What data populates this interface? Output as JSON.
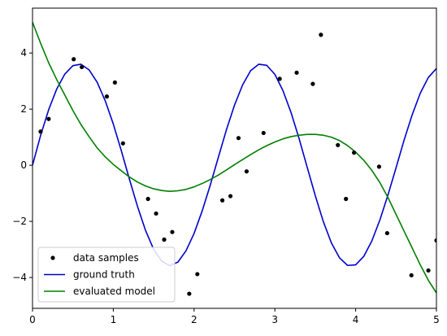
{
  "chart_data": {
    "type": "line",
    "title": "",
    "xlabel": "",
    "ylabel": "",
    "xlim": [
      0,
      5
    ],
    "ylim": [
      -5.1,
      5.6
    ],
    "xticks": [
      0,
      1,
      2,
      3,
      4,
      5
    ],
    "yticks": [
      -4,
      -2,
      0,
      2,
      4
    ],
    "grid": false,
    "legend_position": "bottom-left",
    "legend": [
      "data samples",
      "ground truth",
      "evaluated model"
    ],
    "series": [
      {
        "name": "data samples",
        "kind": "scatter",
        "color": "#000000",
        "x": [
          0.1,
          0.2,
          0.51,
          0.61,
          0.92,
          1.02,
          1.12,
          1.43,
          1.53,
          1.63,
          1.73,
          1.94,
          2.04,
          2.35,
          2.45,
          2.55,
          2.65,
          2.86,
          3.06,
          3.27,
          3.47,
          3.57,
          3.78,
          3.88,
          3.98,
          4.29,
          4.39,
          4.69,
          4.9,
          5.0
        ],
        "y": [
          1.2,
          1.65,
          3.78,
          3.5,
          2.45,
          2.95,
          0.78,
          -1.2,
          -1.72,
          -2.65,
          -2.38,
          -4.58,
          -3.88,
          -1.25,
          -1.1,
          0.97,
          -0.22,
          1.15,
          3.08,
          3.3,
          2.9,
          4.65,
          0.72,
          -1.2,
          0.45,
          -0.05,
          -2.42,
          -3.92,
          -3.75,
          -2.68
        ]
      },
      {
        "name": "ground truth",
        "kind": "line",
        "color": "#0000cc",
        "x": [
          0,
          0.1,
          0.2,
          0.3,
          0.4,
          0.5,
          0.6,
          0.7,
          0.8,
          0.9,
          1.0,
          1.1,
          1.2,
          1.3,
          1.4,
          1.5,
          1.6,
          1.7,
          1.8,
          1.9,
          2.0,
          2.1,
          2.2,
          2.3,
          2.4,
          2.5,
          2.6,
          2.7,
          2.8,
          2.9,
          3.0,
          3.1,
          3.2,
          3.3,
          3.4,
          3.5,
          3.6,
          3.7,
          3.8,
          3.9,
          4.0,
          4.1,
          4.2,
          4.3,
          4.4,
          4.5,
          4.6,
          4.7,
          4.8,
          4.9,
          5.0
        ],
        "y": [
          0.0,
          1.06,
          1.98,
          2.72,
          3.25,
          3.55,
          3.6,
          3.4,
          2.96,
          2.3,
          1.47,
          0.51,
          -0.5,
          -1.47,
          -2.33,
          -3.0,
          -3.42,
          -3.58,
          -3.45,
          -3.05,
          -2.43,
          -1.63,
          -0.71,
          0.28,
          1.26,
          2.14,
          2.86,
          3.37,
          3.6,
          3.56,
          3.24,
          2.66,
          1.88,
          0.95,
          -0.07,
          -1.08,
          -2.01,
          -2.77,
          -3.3,
          -3.57,
          -3.55,
          -3.25,
          -2.7,
          -1.95,
          -1.06,
          -0.09,
          0.9,
          1.8,
          2.57,
          3.13,
          3.45
        ]
      },
      {
        "name": "evaluated model",
        "kind": "line",
        "color": "#008000",
        "x": [
          0,
          0.1,
          0.2,
          0.3,
          0.4,
          0.5,
          0.6,
          0.7,
          0.8,
          0.9,
          1.0,
          1.1,
          1.2,
          1.3,
          1.4,
          1.5,
          1.6,
          1.7,
          1.8,
          1.9,
          2.0,
          2.1,
          2.2,
          2.3,
          2.4,
          2.5,
          2.6,
          2.7,
          2.8,
          2.9,
          3.0,
          3.1,
          3.2,
          3.3,
          3.4,
          3.5,
          3.6,
          3.7,
          3.8,
          3.9,
          4.0,
          4.1,
          4.2,
          4.3,
          4.4,
          4.5,
          4.6,
          4.7,
          4.8,
          4.9,
          5.0
        ],
        "y": [
          5.1,
          4.35,
          3.65,
          3.05,
          2.5,
          1.95,
          1.45,
          1.02,
          0.62,
          0.3,
          0.03,
          -0.2,
          -0.42,
          -0.6,
          -0.74,
          -0.84,
          -0.9,
          -0.93,
          -0.91,
          -0.86,
          -0.77,
          -0.65,
          -0.51,
          -0.35,
          -0.17,
          0.02,
          0.2,
          0.38,
          0.55,
          0.7,
          0.83,
          0.94,
          1.02,
          1.07,
          1.1,
          1.1,
          1.07,
          1.0,
          0.88,
          0.7,
          0.47,
          0.18,
          -0.18,
          -0.62,
          -1.15,
          -1.75,
          -2.35,
          -2.95,
          -3.55,
          -4.1,
          -4.55
        ]
      }
    ]
  }
}
